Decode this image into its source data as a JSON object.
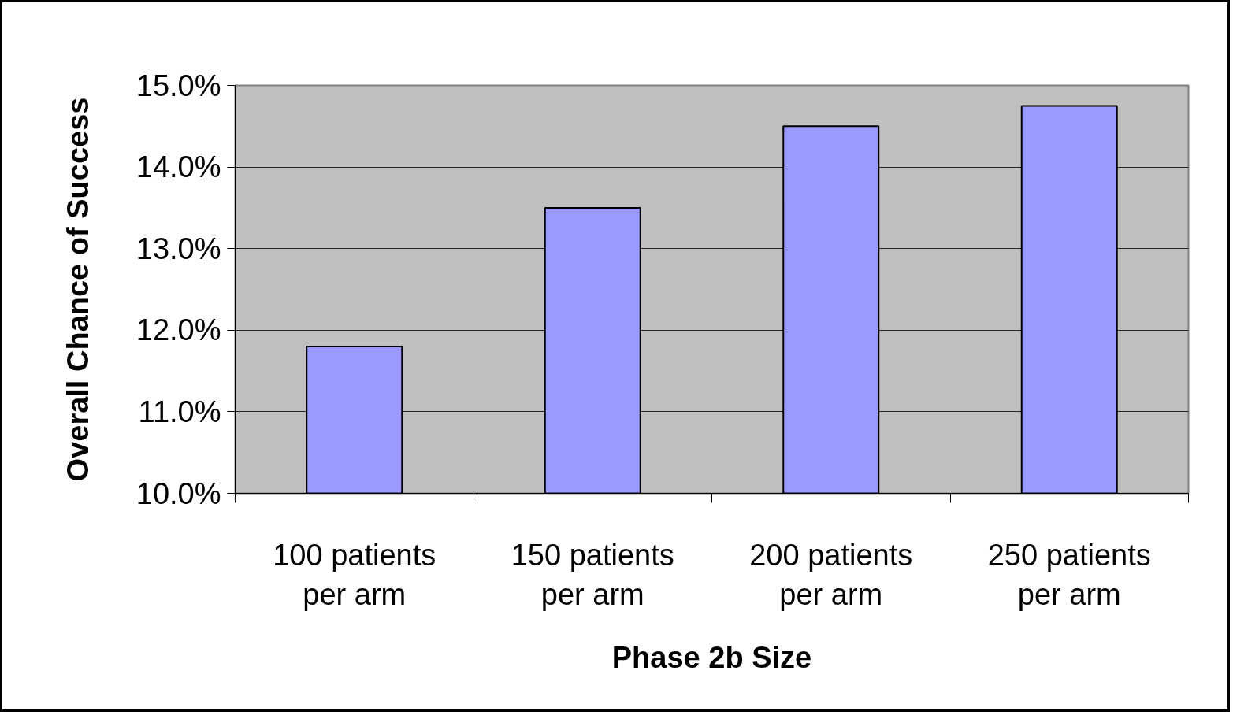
{
  "chart_data": {
    "type": "bar",
    "xlabel": "Phase 2b Size",
    "ylabel": "Overall Chance of Success",
    "categories": [
      "100 patients per arm",
      "150 patients per arm",
      "200 patients per arm",
      "250 patients per arm"
    ],
    "values": [
      11.8,
      13.5,
      14.5,
      14.75
    ],
    "color": "#9999ff",
    "ylim": [
      10,
      15
    ],
    "yticks": [
      {
        "value": 10,
        "label": "10.0%"
      },
      {
        "value": 11,
        "label": "11.0%"
      },
      {
        "value": 12,
        "label": "12.0%"
      },
      {
        "value": 13,
        "label": "13.0%"
      },
      {
        "value": 14,
        "label": "14.0%"
      },
      {
        "value": 15,
        "label": "15.0%"
      }
    ],
    "grid": "y"
  }
}
